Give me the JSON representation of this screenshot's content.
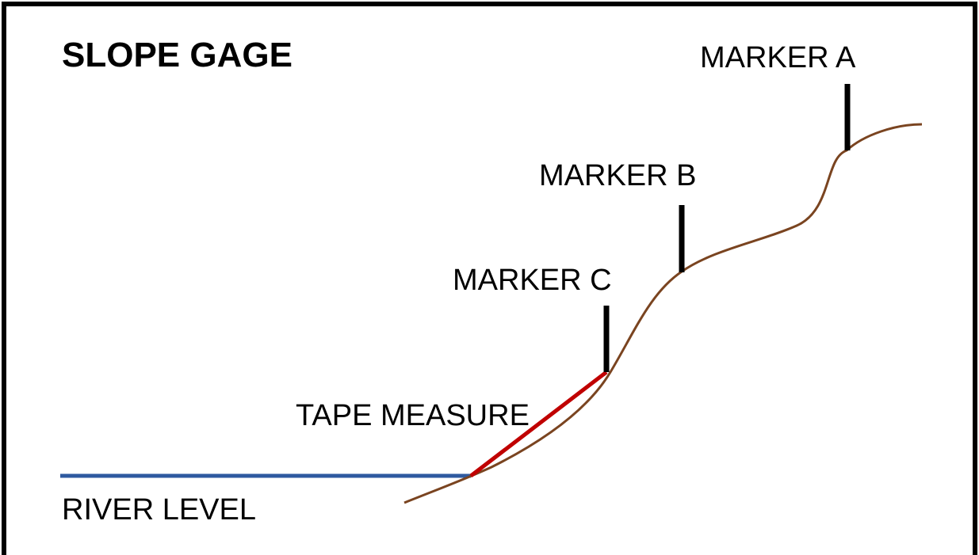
{
  "title": "SLOPE GAGE",
  "labels": {
    "marker_a": "MARKER A",
    "marker_b": "MARKER B",
    "marker_c": "MARKER C",
    "tape_measure": "TAPE MEASURE",
    "river_level": "RIVER LEVEL"
  }
}
